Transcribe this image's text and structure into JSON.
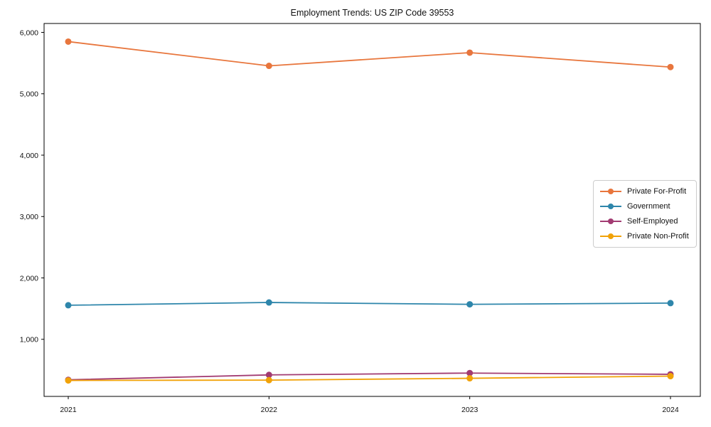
{
  "page": {
    "background": "#ffffff"
  },
  "chart_data": {
    "type": "line",
    "title": "Employment Trends: US ZIP Code 39553",
    "categories": [
      "2021",
      "2022",
      "2023",
      "2024"
    ],
    "series": [
      {
        "name": "Private For-Profit",
        "color": "#E8763D",
        "values": [
          5850,
          5455,
          5670,
          5435
        ]
      },
      {
        "name": "Government",
        "color": "#2E86AB",
        "values": [
          1555,
          1600,
          1570,
          1590
        ]
      },
      {
        "name": "Self-Employed",
        "color": "#A23B72",
        "values": [
          340,
          420,
          450,
          430
        ]
      },
      {
        "name": "Private Non-Profit",
        "color": "#F1A208",
        "values": [
          330,
          335,
          365,
          400
        ]
      }
    ],
    "xlabel": "",
    "ylabel": "",
    "ylim": [
      70,
      6145
    ],
    "yticks": [
      1000,
      2000,
      3000,
      4000,
      5000,
      6000
    ],
    "ytick_labels": [
      "1,000",
      "2,000",
      "3,000",
      "4,000",
      "5,000",
      "6,000"
    ],
    "grid": false,
    "legend_position": "center right",
    "axis_color": "#000000",
    "marker_radius": 4.5,
    "line_width": 1.8
  }
}
